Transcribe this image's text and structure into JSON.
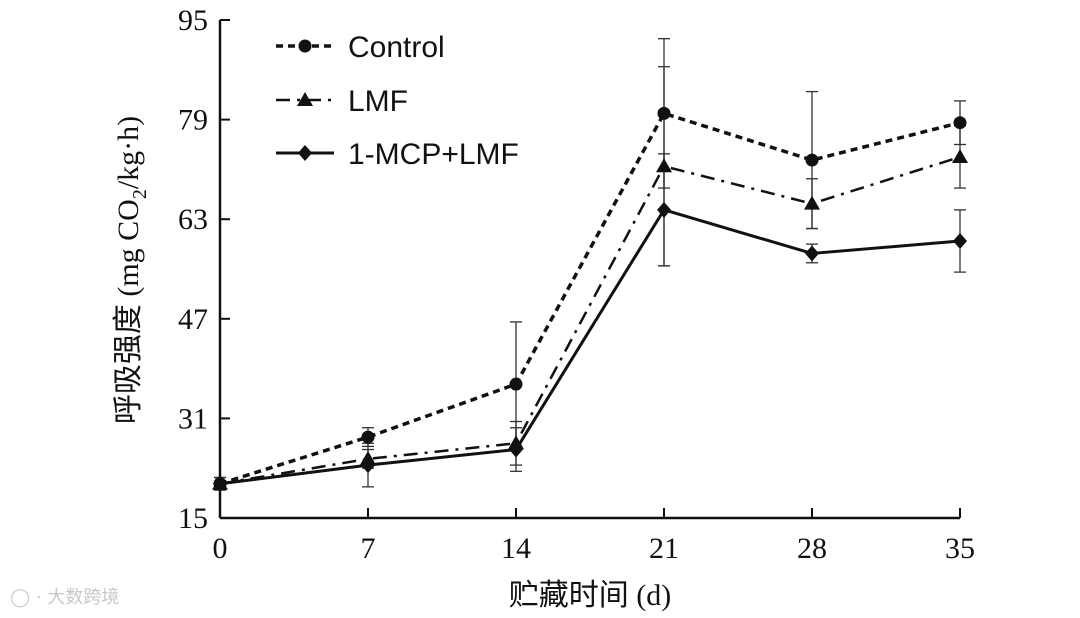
{
  "chart_data": {
    "type": "line",
    "x": [
      0,
      7,
      14,
      21,
      28,
      35
    ],
    "xlabel": "贮藏时间 (d)",
    "ylabel": "呼吸强度 (mg CO2/kg·h)",
    "ylabel_main": "呼吸强度 (mg CO",
    "ylabel_sub": "2",
    "ylabel_tail": "/kg·h)",
    "xlim": [
      0,
      35
    ],
    "ylim": [
      15,
      95
    ],
    "xticks": [
      "0",
      "7",
      "14",
      "21",
      "28",
      "35"
    ],
    "yticks": [
      "15",
      "31",
      "47",
      "63",
      "79",
      "95"
    ],
    "grid": false,
    "legend_position": "top-left",
    "series": [
      {
        "name": "Control",
        "style": "dashed",
        "marker": "circle",
        "color": "#111111",
        "values": [
          20.5,
          28,
          36.5,
          80,
          72.5,
          78.5
        ],
        "errors": [
          1,
          1.5,
          10,
          12,
          11,
          3.5
        ]
      },
      {
        "name": "LMF",
        "style": "dashdot",
        "marker": "triangle",
        "color": "#111111",
        "values": [
          20.5,
          24.5,
          27,
          71.5,
          65.5,
          73
        ],
        "errors": [
          1,
          1.5,
          3.5,
          16,
          4,
          5
        ]
      },
      {
        "name": "1-MCP+LMF",
        "style": "solid",
        "marker": "diamond",
        "color": "#111111",
        "values": [
          20.5,
          23.5,
          26,
          64.5,
          57.5,
          59.5
        ],
        "errors": [
          1,
          3.5,
          3.5,
          9,
          1.5,
          5
        ]
      }
    ]
  },
  "watermark": "大数跨境"
}
